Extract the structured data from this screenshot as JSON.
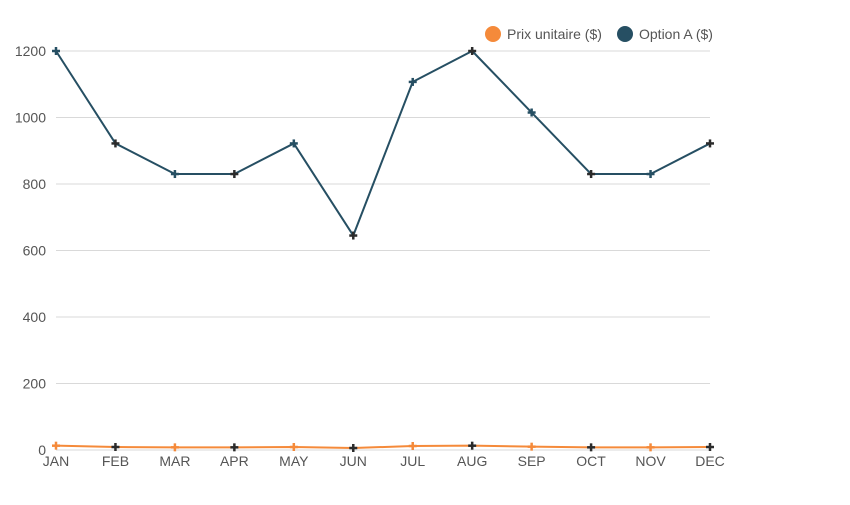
{
  "chart_data": {
    "type": "line",
    "categories": [
      "JAN",
      "FEB",
      "MAR",
      "APR",
      "MAY",
      "JUN",
      "JUL",
      "AUG",
      "SEP",
      "OCT",
      "NOV",
      "DEC"
    ],
    "series": [
      {
        "name": "Prix unitaire ($)",
        "color": "#f58a3a",
        "values": [
          13,
          9,
          8,
          8,
          9,
          6,
          12,
          13,
          10,
          8,
          8,
          9
        ]
      },
      {
        "name": "Option A ($)",
        "color": "#264f63",
        "values": [
          1200,
          922,
          830,
          830,
          922,
          645,
          1107,
          1200,
          1015,
          830,
          830,
          922
        ]
      }
    ],
    "ylim": [
      0,
      1200
    ],
    "yticks": [
      0,
      200,
      400,
      600,
      800,
      1000,
      1200
    ],
    "grid": true,
    "legend_position": "top-right"
  }
}
